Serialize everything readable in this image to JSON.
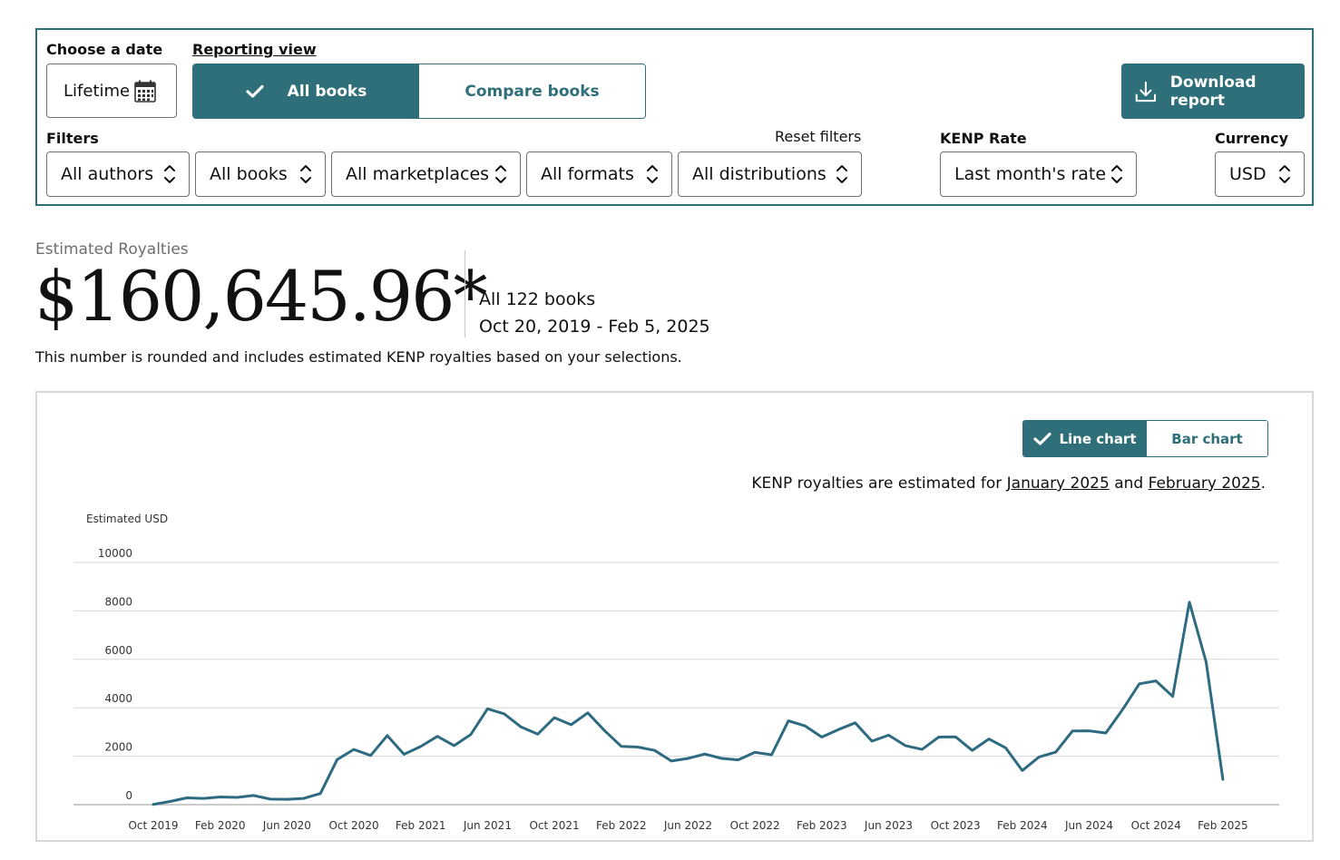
{
  "controls": {
    "choose_date_label": "Choose a date",
    "date_value": "Lifetime",
    "reporting_view_label": "Reporting view",
    "view_all_books": "All books",
    "view_compare_books": "Compare books",
    "download_label": "Download report",
    "filters_label": "Filters",
    "reset_filters": "Reset filters",
    "kenp_rate_label": "KENP Rate",
    "currency_label": "Currency",
    "filter_authors": "All authors",
    "filter_books": "All books",
    "filter_marketplaces": "All marketplaces",
    "filter_formats": "All formats",
    "filter_distributions": "All distributions",
    "kenp_rate_value": "Last month's rate",
    "currency_value": "USD"
  },
  "royalties": {
    "label": "Estimated Royalties",
    "value": "$160,645.96*",
    "books": "All 122 books",
    "date_range": "Oct 20, 2019 - Feb 5, 2025",
    "note": "This number is rounded and includes estimated KENP royalties based on your selections."
  },
  "chart_panel": {
    "line_chart_label": "Line chart",
    "bar_chart_label": "Bar chart",
    "kenp_note_prefix": "KENP royalties are estimated for ",
    "kenp_note_link1": "January 2025",
    "kenp_note_mid": " and ",
    "kenp_note_link2": "February 2025",
    "kenp_note_suffix": "."
  },
  "colors": {
    "accent": "#2f6f7a",
    "line": "#2e6b80",
    "grid": "#d5d9d9"
  },
  "chart_data": {
    "type": "line",
    "ylabel": "Estimated USD",
    "xlabel": "",
    "ylim": [
      0,
      10000
    ],
    "yticks": [
      0,
      2000,
      4000,
      6000,
      8000,
      10000
    ],
    "xtick_labels": [
      "Oct 2019",
      "Feb 2020",
      "Jun 2020",
      "Oct 2020",
      "Feb 2021",
      "Jun 2021",
      "Oct 2021",
      "Feb 2022",
      "Jun 2022",
      "Oct 2022",
      "Feb 2023",
      "Jun 2023",
      "Oct 2023",
      "Feb 2024",
      "Jun 2024",
      "Oct 2024",
      "Feb 2025"
    ],
    "grid": true,
    "legend": "none",
    "x": [
      "Oct 2019",
      "Nov 2019",
      "Dec 2019",
      "Jan 2020",
      "Feb 2020",
      "Mar 2020",
      "Apr 2020",
      "May 2020",
      "Jun 2020",
      "Jul 2020",
      "Aug 2020",
      "Sep 2020",
      "Oct 2020",
      "Nov 2020",
      "Dec 2020",
      "Jan 2021",
      "Feb 2021",
      "Mar 2021",
      "Apr 2021",
      "May 2021",
      "Jun 2021",
      "Jul 2021",
      "Aug 2021",
      "Sep 2021",
      "Oct 2021",
      "Nov 2021",
      "Dec 2021",
      "Jan 2022",
      "Feb 2022",
      "Mar 2022",
      "Apr 2022",
      "May 2022",
      "Jun 2022",
      "Jul 2022",
      "Aug 2022",
      "Sep 2022",
      "Oct 2022",
      "Nov 2022",
      "Dec 2022",
      "Jan 2023",
      "Feb 2023",
      "Mar 2023",
      "Apr 2023",
      "May 2023",
      "Jun 2023",
      "Jul 2023",
      "Aug 2023",
      "Sep 2023",
      "Oct 2023",
      "Nov 2023",
      "Dec 2023",
      "Jan 2024",
      "Feb 2024",
      "Mar 2024",
      "Apr 2024",
      "May 2024",
      "Jun 2024",
      "Jul 2024",
      "Aug 2024",
      "Sep 2024",
      "Oct 2024",
      "Nov 2024",
      "Dec 2024",
      "Jan 2025",
      "Feb 2025"
    ],
    "values": [
      10,
      130,
      280,
      260,
      320,
      300,
      380,
      230,
      220,
      260,
      460,
      1860,
      2280,
      2030,
      2850,
      2080,
      2400,
      2820,
      2440,
      2900,
      3960,
      3750,
      3210,
      2910,
      3590,
      3300,
      3790,
      3060,
      2410,
      2380,
      2240,
      1800,
      1910,
      2090,
      1910,
      1850,
      2160,
      2060,
      3460,
      3250,
      2790,
      3100,
      3380,
      2620,
      2870,
      2440,
      2280,
      2790,
      2800,
      2240,
      2710,
      2350,
      1410,
      1970,
      2170,
      3040,
      3050,
      2960,
      3930,
      4990,
      5110,
      4470,
      8360,
      5880,
      1040
    ]
  }
}
